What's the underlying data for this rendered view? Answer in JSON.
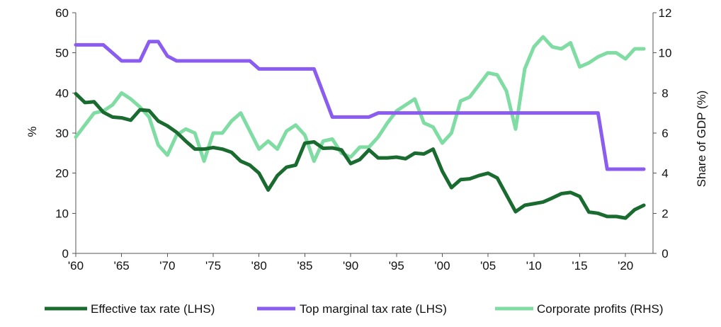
{
  "chart_data": {
    "type": "line",
    "title": "",
    "x": [
      1960,
      1961,
      1962,
      1963,
      1964,
      1965,
      1966,
      1967,
      1968,
      1969,
      1970,
      1971,
      1972,
      1973,
      1974,
      1975,
      1976,
      1977,
      1978,
      1979,
      1980,
      1981,
      1982,
      1983,
      1984,
      1985,
      1986,
      1987,
      1988,
      1989,
      1990,
      1991,
      1992,
      1993,
      1994,
      1995,
      1996,
      1997,
      1998,
      1999,
      2000,
      2001,
      2002,
      2003,
      2004,
      2005,
      2006,
      2007,
      2008,
      2009,
      2010,
      2011,
      2012,
      2013,
      2014,
      2015,
      2016,
      2017,
      2018,
      2019,
      2020,
      2021,
      2022
    ],
    "x_ticks": [
      1960,
      1965,
      1970,
      1975,
      1980,
      1985,
      1990,
      1995,
      2000,
      2005,
      2010,
      2015,
      2020
    ],
    "x_tick_labels": [
      "'60",
      "'65",
      "'70",
      "'75",
      "'80",
      "'85",
      "'90",
      "'95",
      "'00",
      "'05",
      "'10",
      "'15",
      "'20"
    ],
    "xlim": [
      1960,
      2023
    ],
    "ylabel_left": "%",
    "ylabel_right": "Share of GDP (%)",
    "ylim_left": [
      0,
      60
    ],
    "ylim_right": [
      0,
      12
    ],
    "yticks_left": [
      0,
      10,
      20,
      30,
      40,
      50,
      60
    ],
    "yticks_right": [
      0,
      2,
      4,
      6,
      8,
      10,
      12
    ],
    "grid": false,
    "legend_position": "bottom",
    "series": [
      {
        "name": "Effective tax rate (LHS)",
        "axis": "left",
        "color": "#1a6b2f",
        "values": [
          39.8,
          37.6,
          37.8,
          35.2,
          34.0,
          33.8,
          33.2,
          35.8,
          35.6,
          33.0,
          31.8,
          30.2,
          28.0,
          26.0,
          26.0,
          26.4,
          26.0,
          25.2,
          23.0,
          22.0,
          20.0,
          15.8,
          19.4,
          21.5,
          22.0,
          27.5,
          27.8,
          26.2,
          26.3,
          25.8,
          22.4,
          23.4,
          25.8,
          23.8,
          23.8,
          24.0,
          23.6,
          25.0,
          24.8,
          26.0,
          20.5,
          16.4,
          18.4,
          18.6,
          19.4,
          20.0,
          18.8,
          14.6,
          10.4,
          12.0,
          12.4,
          12.8,
          13.8,
          14.9,
          15.2,
          14.2,
          10.3,
          10.0,
          9.2,
          9.2,
          8.8,
          10.9,
          12.0
        ]
      },
      {
        "name": "Top marginal tax rate (LHS)",
        "axis": "left",
        "color": "#8a5cf0",
        "values": [
          52,
          52,
          52,
          52,
          50,
          48,
          48,
          48,
          52.8,
          52.8,
          49.2,
          48,
          48,
          48,
          48,
          48,
          48,
          48,
          48,
          48,
          46,
          46,
          46,
          46,
          46,
          46,
          46,
          40,
          34,
          34,
          34,
          34,
          34,
          35,
          35,
          35,
          35,
          35,
          35,
          35,
          35,
          35,
          35,
          35,
          35,
          35,
          35,
          35,
          35,
          35,
          35,
          35,
          35,
          35,
          35,
          35,
          35,
          35,
          21,
          21,
          21,
          21,
          21
        ]
      },
      {
        "name": "Corporate profits (RHS)",
        "axis": "right",
        "color": "#7fdca2",
        "values": [
          5.8,
          6.4,
          7.0,
          7.1,
          7.4,
          8.0,
          7.7,
          7.3,
          6.8,
          5.4,
          4.9,
          5.9,
          6.2,
          6.0,
          4.6,
          6.0,
          6.0,
          6.6,
          7.0,
          6.1,
          5.2,
          5.6,
          5.2,
          6.1,
          6.4,
          5.9,
          4.6,
          5.6,
          5.7,
          5.0,
          4.8,
          5.3,
          5.3,
          5.8,
          6.5,
          7.1,
          7.4,
          7.7,
          6.5,
          6.3,
          5.5,
          6.0,
          7.6,
          7.8,
          8.4,
          9.0,
          8.9,
          8.1,
          6.2,
          9.2,
          10.3,
          10.8,
          10.3,
          10.2,
          10.5,
          9.3,
          9.5,
          9.8,
          10.0,
          10.0,
          9.7,
          10.2,
          10.2
        ]
      }
    ]
  }
}
